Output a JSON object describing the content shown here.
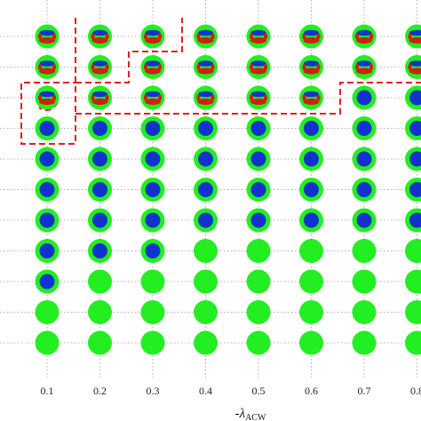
{
  "chart_data": {
    "type": "scatter",
    "xlabel_symbol": "-λ",
    "xlabel_subscript": "ACW",
    "x": [
      0.1,
      0.2,
      0.3,
      0.4,
      0.5,
      0.6,
      0.7,
      0.8
    ],
    "x_tick_labels": [
      "0.1",
      "0.2",
      "0.3",
      "0.4",
      "0.5",
      "0.6",
      "0.7",
      "0.8"
    ],
    "grid": true,
    "state_colors": {
      "outer_ring": "#22ee22",
      "core": "#1133cc",
      "lobe_red": "#cc2211",
      "boundary": "#dd2222",
      "grid": "#999999"
    },
    "pattern_types": [
      "lobed",
      "core",
      "uniform"
    ],
    "rows": [
      [
        "lobed",
        "lobed",
        "lobed",
        "lobed",
        "lobed",
        "lobed",
        "lobed",
        "lobed"
      ],
      [
        "lobed",
        "lobed",
        "lobed",
        "lobed",
        "lobed",
        "lobed",
        "lobed",
        "lobed"
      ],
      [
        "lobed",
        "lobed",
        "lobed",
        "lobed",
        "lobed",
        "lobed",
        "core",
        "core"
      ],
      [
        "core",
        "core",
        "core",
        "core",
        "core",
        "core",
        "core",
        "core"
      ],
      [
        "core",
        "core",
        "core",
        "core",
        "core",
        "core",
        "core",
        "core"
      ],
      [
        "core",
        "core",
        "core",
        "core",
        "core",
        "core",
        "core",
        "core"
      ],
      [
        "core",
        "core",
        "core",
        "core",
        "core",
        "core",
        "core",
        "core"
      ],
      [
        "core",
        "core",
        "core",
        "uniform",
        "uniform",
        "uniform",
        "uniform",
        "uniform"
      ],
      [
        "core",
        "uniform",
        "uniform",
        "uniform",
        "uniform",
        "uniform",
        "uniform",
        "uniform"
      ],
      [
        "uniform",
        "uniform",
        "uniform",
        "uniform",
        "uniform",
        "uniform",
        "uniform",
        "uniform"
      ],
      [
        "uniform",
        "uniform",
        "uniform",
        "uniform",
        "uniform",
        "uniform",
        "uniform",
        "uniform"
      ]
    ]
  }
}
